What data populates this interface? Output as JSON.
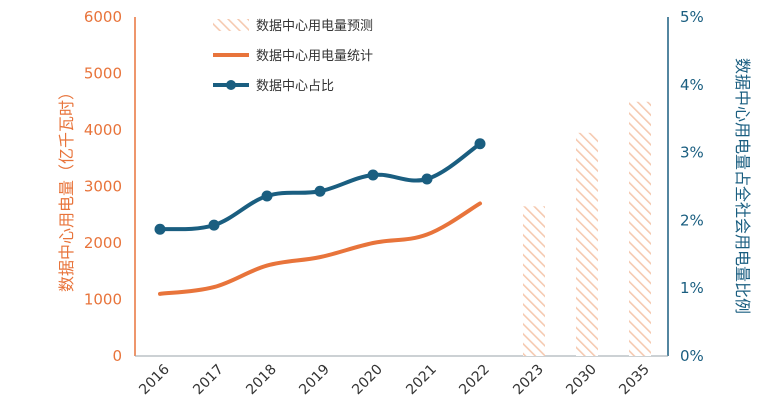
{
  "colors": {
    "consumption": "#E8743B",
    "ratio": "#1A5E80",
    "forecast_hatch": "#F5C9B0"
  },
  "chart_data": {
    "type": "bar-line-combo",
    "categories": [
      "2016",
      "2017",
      "2018",
      "2019",
      "2020",
      "2021",
      "2022",
      "2023",
      "2030",
      "2035"
    ],
    "y_left": {
      "label": "数据中心用电量（亿千瓦时）",
      "ticks": [
        "0",
        "1000",
        "2000",
        "3000",
        "4000",
        "5000",
        "6000"
      ],
      "range": [
        0,
        6000
      ]
    },
    "y_right": {
      "label": "数据中心用电量占全社会用电量比例",
      "ticks": [
        "0%",
        "1%",
        "2%",
        "3%",
        "4%",
        "5%"
      ],
      "range": [
        0,
        5
      ]
    },
    "legend": {
      "position": "top",
      "items": [
        {
          "key": "forecast",
          "label": "数据中心用电量预测",
          "style": "hatched-bar"
        },
        {
          "key": "consumption",
          "label": "数据中心用电量统计",
          "style": "line"
        },
        {
          "key": "ratio",
          "label": "数据中心占比",
          "style": "line-marker"
        }
      ]
    },
    "series": [
      {
        "key": "forecast",
        "name": "数据中心用电量预测",
        "type": "bar",
        "axis": "left",
        "values": [
          null,
          null,
          null,
          null,
          null,
          null,
          null,
          2650,
          3950,
          4500
        ]
      },
      {
        "key": "consumption",
        "name": "数据中心用电量统计",
        "type": "line",
        "axis": "left",
        "values": [
          1100,
          1220,
          1600,
          1750,
          2000,
          2150,
          2700,
          null,
          null,
          null
        ]
      },
      {
        "key": "ratio",
        "name": "数据中心占比",
        "type": "line",
        "axis": "right",
        "markers": true,
        "values": [
          1.87,
          1.93,
          2.36,
          2.43,
          2.67,
          2.61,
          3.13,
          null,
          null,
          null
        ]
      }
    ],
    "grid": false
  }
}
